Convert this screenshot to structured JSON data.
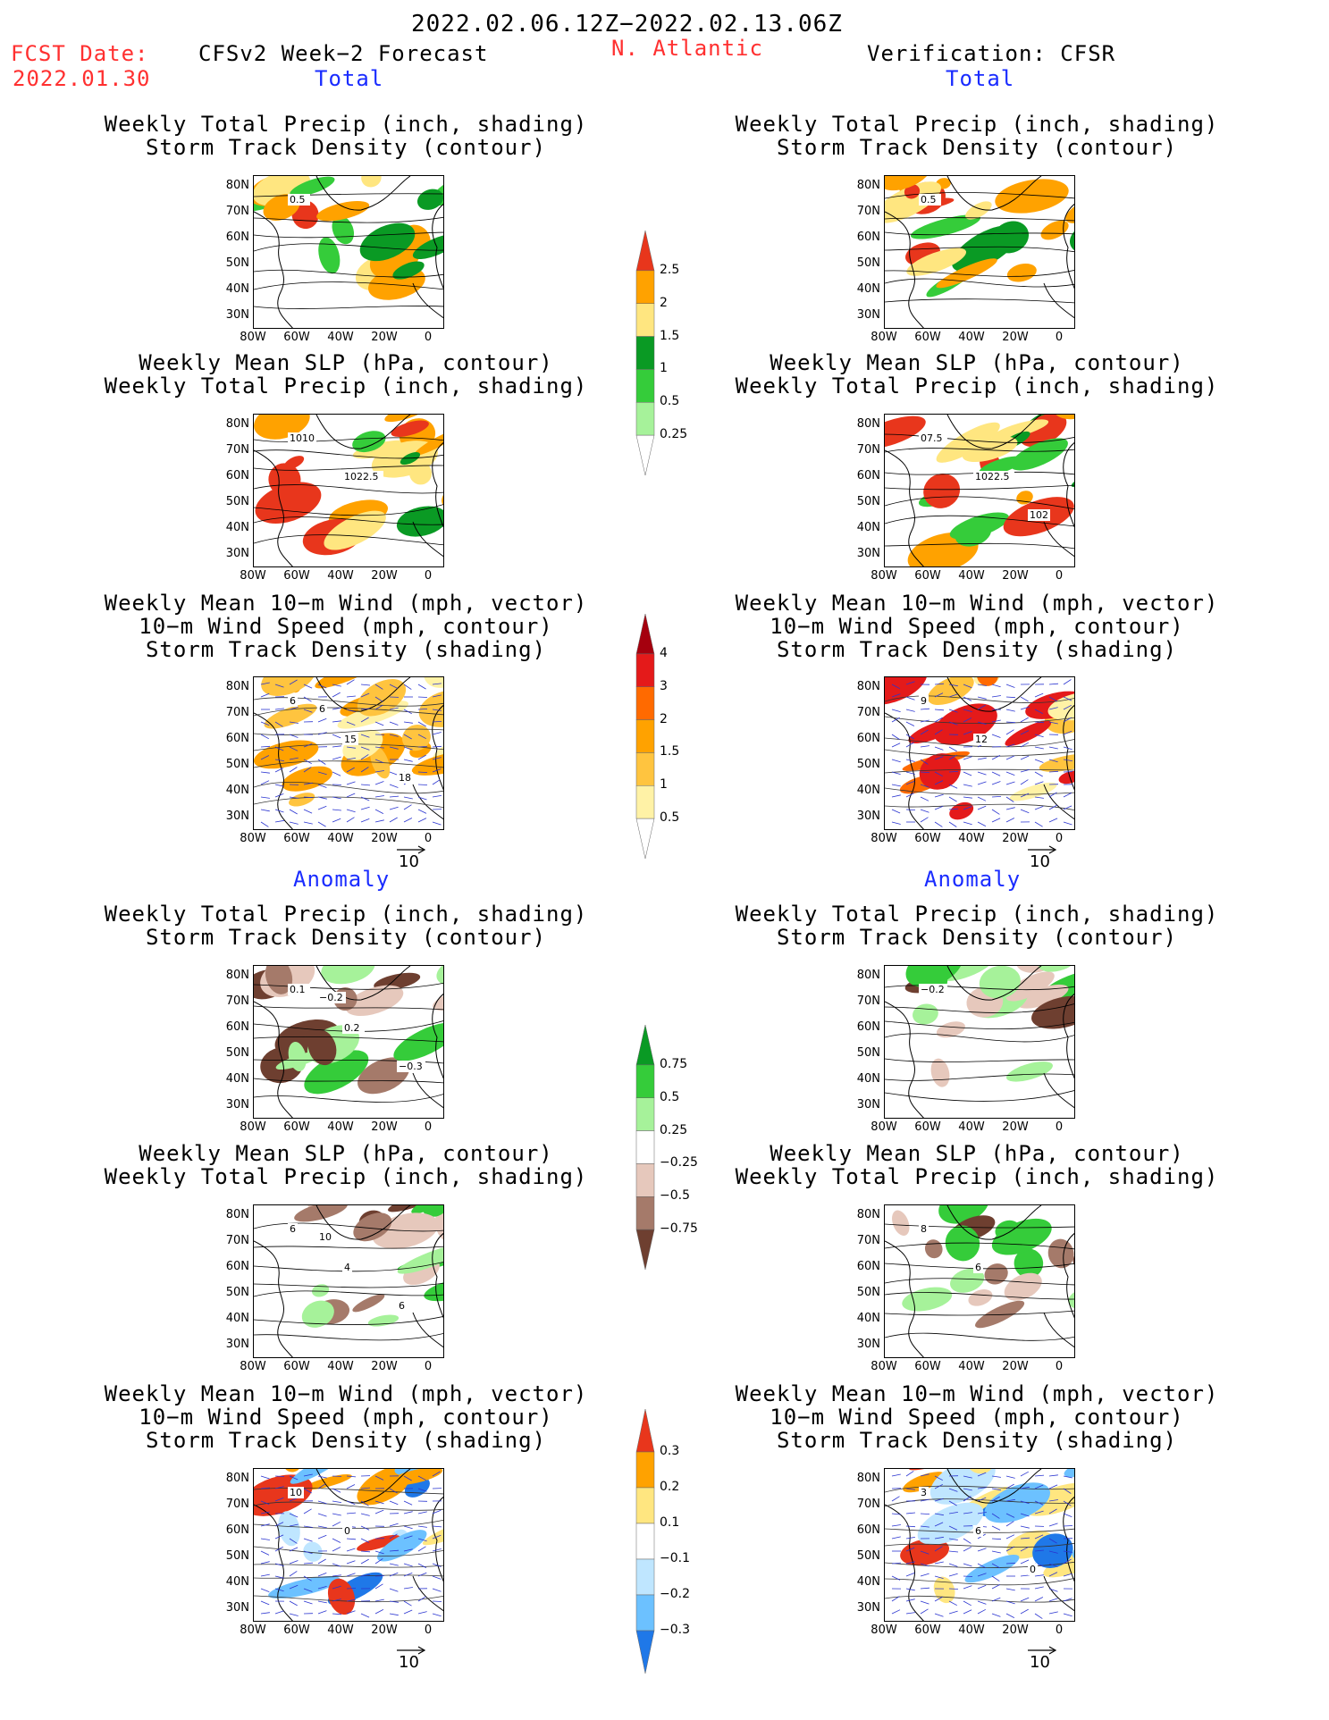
{
  "header": {
    "period": "2022.02.06.12Z−2022.02.13.06Z",
    "fcst_label": "FCST Date:",
    "fcst_date": "2022.01.30",
    "model_title": "CFSv2 Week−2 Forecast",
    "region": "N. Atlantic",
    "verification": "Verification: CFSR"
  },
  "sections": {
    "total": "Total",
    "anomaly": "Anomaly"
  },
  "titles": {
    "precip_storm_l1": "Weekly Total Precip (inch, shading)",
    "precip_storm_l2": "Storm Track Density (contour)",
    "slp_l1": "Weekly Mean SLP (hPa, contour)",
    "slp_l2": "Weekly Total Precip (inch, shading)",
    "wind_l1": "Weekly Mean 10−m Wind (mph, vector)",
    "wind_l2": "10−m Wind Speed (mph, contour)",
    "wind_l3": "Storm Track Density (shading)"
  },
  "axes": {
    "lat": [
      "80N",
      "70N",
      "60N",
      "50N",
      "40N",
      "30N"
    ],
    "lon": [
      "80W",
      "60W",
      "40W",
      "20W",
      "0"
    ]
  },
  "vector_ref": "10",
  "colorbars": {
    "precip_total": {
      "labels": [
        "2.5",
        "2",
        "1.5",
        "1",
        "0.5",
        "0.25"
      ],
      "colors": [
        "#e8361c",
        "#ffa200",
        "#ffe680",
        "#0a9a24",
        "#35cc3a",
        "#a6f29a",
        "#ffffff"
      ]
    },
    "storm_total": {
      "labels": [
        "4",
        "3",
        "2",
        "1.5",
        "1",
        "0.5"
      ],
      "colors": [
        "#a5000e",
        "#e41a1a",
        "#ff6a00",
        "#ffa200",
        "#ffc43f",
        "#fff2a6",
        "#ffffff"
      ]
    },
    "precip_anom": {
      "labels": [
        "0.75",
        "0.5",
        "0.25",
        "−0.25",
        "−0.5",
        "−0.75"
      ],
      "colors": [
        "#0a9a24",
        "#35cc3a",
        "#a6f29a",
        "#ffffff",
        "#e6c8bc",
        "#a57a6a",
        "#6e3f30"
      ]
    },
    "storm_anom": {
      "labels": [
        "0.3",
        "0.2",
        "0.1",
        "−0.1",
        "−0.2",
        "−0.3"
      ],
      "colors": [
        "#e8361c",
        "#ffa200",
        "#ffe680",
        "#ffffff",
        "#bfe6ff",
        "#6cc1ff",
        "#1f78e8"
      ]
    }
  },
  "map_labels": {
    "f_t1": [
      "0.5"
    ],
    "v_t1": [
      "0.5"
    ],
    "f_t2": [
      "1010",
      "1022.5"
    ],
    "v_t2": [
      "07.5",
      "1022.5",
      "102"
    ],
    "f_t3": [
      "6",
      "15",
      "18",
      "6"
    ],
    "v_t3": [
      "9",
      "12"
    ],
    "f_a1": [
      "0.1",
      "0.2",
      "−0.3",
      "−0.2"
    ],
    "v_a1": [
      "−0.2"
    ],
    "f_a2": [
      "6",
      "4",
      "6",
      "10"
    ],
    "v_a2": [
      "8",
      "6"
    ],
    "f_a3": [
      "10",
      "0"
    ],
    "v_a3": [
      "3",
      "6",
      "0"
    ]
  }
}
